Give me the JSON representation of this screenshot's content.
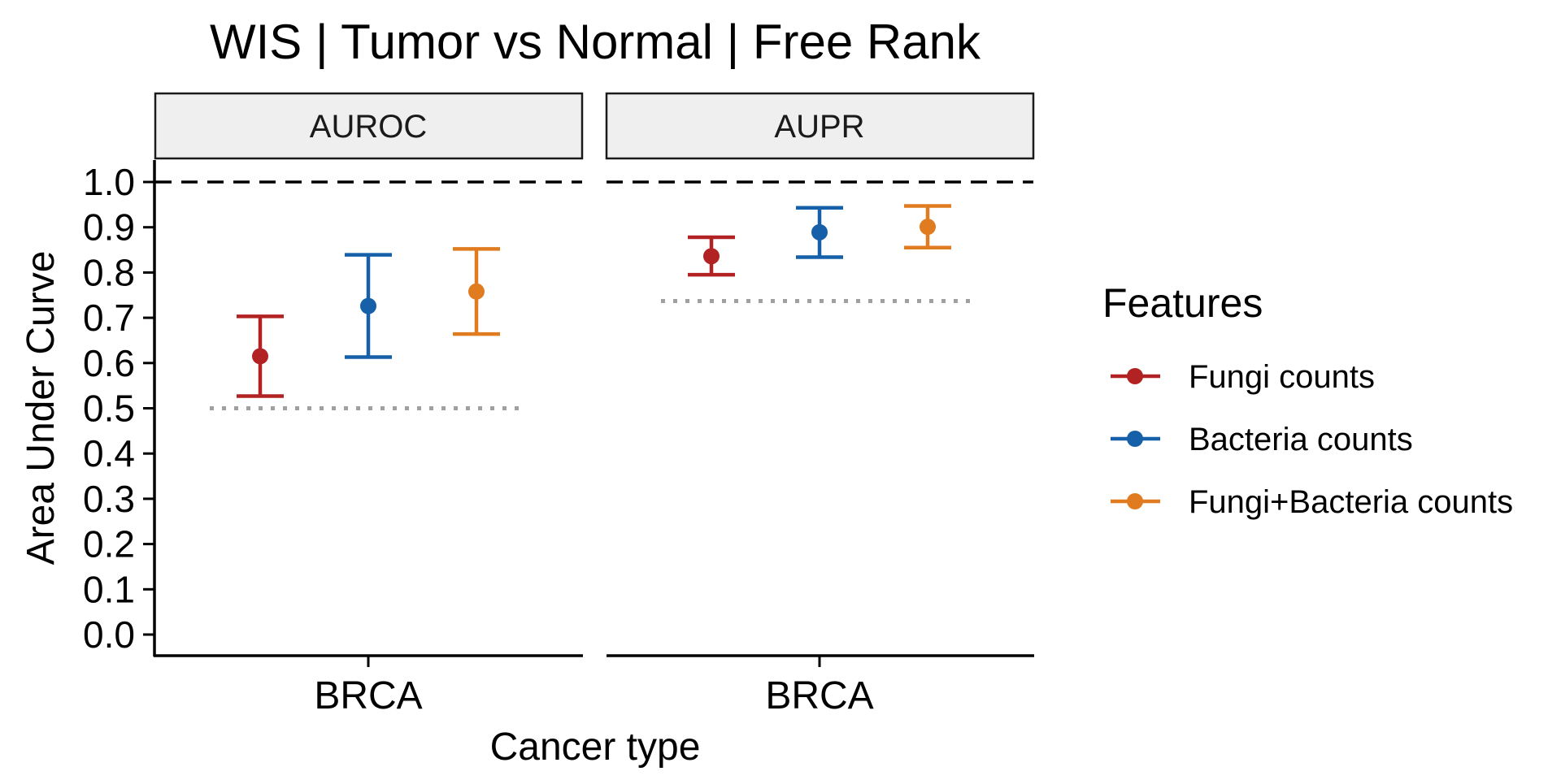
{
  "chart_data": {
    "type": "errorbar",
    "title": "WIS | Tumor vs Normal | Free Rank",
    "xlabel": "Cancer type",
    "ylabel": "Area Under Curve",
    "ylim": [
      0,
      1
    ],
    "y_ticks": [
      "0.0",
      "0.1",
      "0.2",
      "0.3",
      "0.4",
      "0.5",
      "0.6",
      "0.7",
      "0.8",
      "0.9",
      "1.0"
    ],
    "reference_line": 1.0,
    "legend": {
      "title": "Features",
      "position": "right",
      "entries": [
        "Fungi counts",
        "Bacteria counts",
        "Fungi+Bacteria counts"
      ]
    },
    "colors": {
      "Fungi counts": "#B22222",
      "Bacteria counts": "#1560A8",
      "Fungi+Bacteria counts": "#E07B20"
    },
    "panels": [
      {
        "strip": "AUROC",
        "category": "BRCA",
        "baseline": 0.5,
        "series": [
          {
            "name": "Fungi counts",
            "value": 0.615,
            "lower": 0.527,
            "upper": 0.703
          },
          {
            "name": "Bacteria counts",
            "value": 0.726,
            "lower": 0.613,
            "upper": 0.839
          },
          {
            "name": "Fungi+Bacteria counts",
            "value": 0.758,
            "lower": 0.664,
            "upper": 0.852
          }
        ]
      },
      {
        "strip": "AUPR",
        "category": "BRCA",
        "baseline": 0.737,
        "series": [
          {
            "name": "Fungi counts",
            "value": 0.836,
            "lower": 0.795,
            "upper": 0.878
          },
          {
            "name": "Bacteria counts",
            "value": 0.889,
            "lower": 0.834,
            "upper": 0.943
          },
          {
            "name": "Fungi+Bacteria counts",
            "value": 0.901,
            "lower": 0.855,
            "upper": 0.947
          }
        ]
      }
    ]
  }
}
